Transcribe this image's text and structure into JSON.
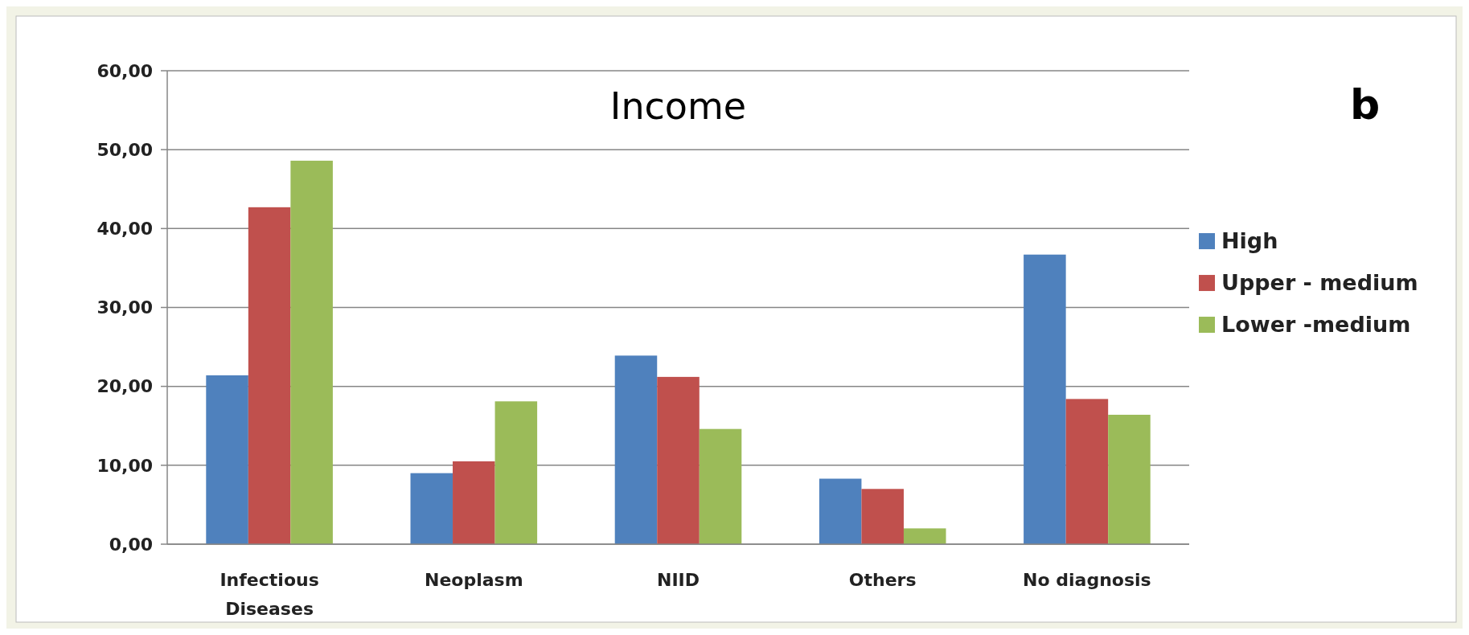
{
  "chart_data": {
    "type": "bar",
    "title": "Income",
    "annotations": [
      "b"
    ],
    "categories": [
      "Infectious Diseases",
      "Neoplasm",
      "NIID",
      "Others",
      "No diagnosis"
    ],
    "series": [
      {
        "name": "High",
        "color": "#4f81bd",
        "values": [
          21.4,
          9.0,
          23.9,
          8.3,
          36.7
        ]
      },
      {
        "name": "Upper - medium",
        "color": "#c0504d",
        "values": [
          42.7,
          10.5,
          21.2,
          7.0,
          18.4
        ]
      },
      {
        "name": "Lower -medium",
        "color": "#9bbb59",
        "values": [
          48.6,
          18.1,
          14.6,
          2.0,
          16.4
        ]
      }
    ],
    "ylim": [
      0,
      60
    ],
    "yticks": [
      {
        "value": 0,
        "label": "0,00"
      },
      {
        "value": 10,
        "label": "10,00"
      },
      {
        "value": 20,
        "label": "20,00"
      },
      {
        "value": 30,
        "label": "30,00"
      },
      {
        "value": 40,
        "label": "40,00"
      },
      {
        "value": 50,
        "label": "50,00"
      },
      {
        "value": 60,
        "label": "60,00"
      }
    ],
    "grid": "y",
    "legend": "right"
  }
}
